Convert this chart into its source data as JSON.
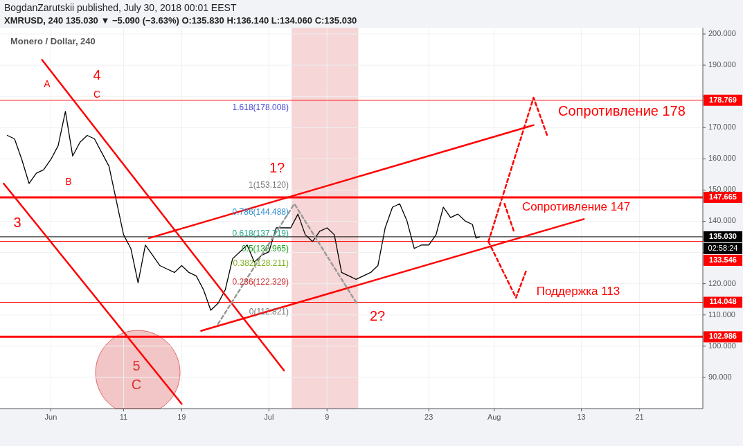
{
  "chart_data": {
    "type": "line",
    "title": "Monero / Dollar, 240",
    "annotations": [
      "BogdanZarutskii published, July 30, 2018 00:01 EEST",
      "XMRUSD, 240  135.030 ▼ −5.090 (−3.63%)  O:135.830  H:136.140  L:134.060  C:135.030",
      "02:58:24",
      "A",
      "4",
      "C",
      "B",
      "3",
      "5",
      "C",
      "1?",
      "2?",
      "Сопротивление 178",
      "Сопротивление 147",
      "Поддержка 113",
      "1.618(178.008)",
      "1(153.120)",
      "0.786(144.488)",
      "0.618(137.719)",
      "0.5(132.965)",
      "0.382(128.211)",
      "0.236(122.329)",
      "0(112.821)"
    ],
    "x": [
      "2018-05-26",
      "2018-05-27",
      "2018-05-28",
      "2018-05-29",
      "2018-05-30",
      "2018-05-31",
      "2018-06-01",
      "2018-06-02",
      "2018-06-03",
      "2018-06-04",
      "2018-06-05",
      "2018-06-06",
      "2018-06-07",
      "2018-06-08",
      "2018-06-09",
      "2018-06-10",
      "2018-06-11",
      "2018-06-12",
      "2018-06-13",
      "2018-06-14",
      "2018-06-15",
      "2018-06-16",
      "2018-06-17",
      "2018-06-18",
      "2018-06-19",
      "2018-06-20",
      "2018-06-21",
      "2018-06-22",
      "2018-06-23",
      "2018-06-24",
      "2018-06-25",
      "2018-06-26",
      "2018-06-27",
      "2018-06-28",
      "2018-06-29",
      "2018-06-30",
      "2018-07-01",
      "2018-07-02",
      "2018-07-03",
      "2018-07-04",
      "2018-07-05",
      "2018-07-06",
      "2018-07-07",
      "2018-07-08",
      "2018-07-09",
      "2018-07-10",
      "2018-07-11",
      "2018-07-12",
      "2018-07-13",
      "2018-07-14",
      "2018-07-15",
      "2018-07-16",
      "2018-07-17",
      "2018-07-18",
      "2018-07-19",
      "2018-07-20",
      "2018-07-21",
      "2018-07-22",
      "2018-07-23",
      "2018-07-24",
      "2018-07-25",
      "2018-07-26",
      "2018-07-27",
      "2018-07-28",
      "2018-07-29",
      "2018-07-29T12:00",
      "2018-07-30"
    ],
    "series": [
      {
        "color": "#000000",
        "values": [
          167.5,
          166.4,
          159.8,
          152.1,
          155.4,
          156.5,
          159.8,
          164.2,
          175.2,
          160.9,
          165.3,
          167.5,
          166.4,
          162,
          157.6,
          146.7,
          135.7,
          131.3,
          120.3,
          132.4,
          129.1,
          125.8,
          124.7,
          123.6,
          125.8,
          123.6,
          122.5,
          118.1,
          111.5,
          113.7,
          118.1,
          128,
          130.2,
          132.4,
          126.9,
          129.1,
          130.2,
          137.9,
          137.9,
          137.9,
          142.3,
          135.7,
          133.5,
          136.8,
          137.9,
          135.7,
          123.6,
          122.5,
          121.4,
          122.5,
          123.6,
          125.8,
          137.9,
          144.5,
          145.6,
          140.1,
          131.3,
          132.4,
          132.4,
          135.7,
          144.5,
          141.2,
          142.3,
          140.1,
          139,
          134.6,
          135
        ]
      },
      {
        "type": "line",
        "color": "#ff0000",
        "x": [
          "2018-06-14T12:00",
          "2018-08-06T10:00"
        ],
        "values": [
          134.6,
          170.8
        ]
      },
      {
        "type": "line",
        "color": "#ff0000",
        "x": [
          "2018-06-21T16:00",
          "2018-08-13T08:00"
        ],
        "values": [
          104.9,
          140.7
        ]
      },
      {
        "type": "line",
        "color": "#ff0000",
        "x": [
          "2018-05-30T19:00",
          "2018-07-03T02:00"
        ],
        "values": [
          191.7,
          92.2
        ]
      },
      {
        "type": "line",
        "color": "#ff0000",
        "x": [
          "2018-05-25T12:00",
          "2018-06-19T00:00"
        ],
        "values": [
          152.1,
          81.5
        ]
      },
      {
        "type": "line",
        "color": "#ff0000",
        "line_style": "dashed",
        "x": [
          "2018-07-31T05:00",
          "2018-08-06T10:00",
          "2018-08-08T07:00"
        ],
        "values": [
          133.5,
          179.6,
          167.5
        ]
      },
      {
        "type": "line",
        "color": "#ff0000",
        "line_style": "dashed",
        "x": [
          "2018-07-31T05:00",
          "2018-08-04T00:00",
          "2018-08-05T10:00"
        ],
        "values": [
          133.5,
          115.5,
          124.3
        ]
      },
      {
        "type": "line",
        "color": "#ff0000",
        "line_style": "dashed",
        "x": [
          "2018-08-02T10:00",
          "2018-08-03T17:00"
        ],
        "values": [
          145.6,
          136.8
        ]
      },
      {
        "type": "line",
        "color": "#999999",
        "line_style": "dashed",
        "x": [
          "2018-06-24T00:00",
          "2018-07-04T12:00",
          "2018-07-13T02:00"
        ],
        "values": [
          107.1,
          145.6,
          113.7
        ]
      }
    ],
    "xlim": [
      "2018-05-25T00:00",
      "2018-08-29T17:00"
    ],
    "xticks": [
      {
        "value": "2018-06-01",
        "label": "Jun"
      },
      {
        "value": "2018-06-11",
        "label": "11"
      },
      {
        "value": "2018-06-19",
        "label": "19"
      },
      {
        "value": "2018-07-01",
        "label": "Jul"
      },
      {
        "value": "2018-07-09",
        "label": "9"
      },
      {
        "value": "2018-07-23",
        "label": "23"
      },
      {
        "value": "2018-08-01",
        "label": "Aug"
      },
      {
        "value": "2018-08-13",
        "label": "13"
      },
      {
        "value": "2018-08-21",
        "label": "21"
      }
    ],
    "ylim": [
      80,
      202
    ],
    "yticks": [
      {
        "value": 90,
        "label": "90.000"
      },
      {
        "value": 100,
        "label": "100.000"
      },
      {
        "value": 110,
        "label": "110.000"
      },
      {
        "value": 120,
        "label": "120.000"
      },
      {
        "value": 130,
        "label": null
      },
      {
        "value": 140,
        "label": "140.000"
      },
      {
        "value": 150,
        "label": "150.000"
      },
      {
        "value": 160,
        "label": "160.000"
      },
      {
        "value": 170,
        "label": "170.000"
      },
      {
        "value": 180,
        "label": null
      },
      {
        "value": 190,
        "label": "190.000"
      },
      {
        "value": 200,
        "label": "200.000"
      }
    ],
    "ref_lines": [
      {
        "axis": "y",
        "value": 178.769,
        "label": "178.769",
        "color": "#ff0000"
      },
      {
        "axis": "y",
        "value": 147.665,
        "label": "147.665",
        "color": "#ff0000"
      },
      {
        "axis": "y",
        "value": 135.03,
        "label": "135.030",
        "color": "#000000"
      },
      {
        "axis": "y",
        "value": 133.546,
        "label": "133.546",
        "color": "#ff0000"
      },
      {
        "axis": "y",
        "value": 114.048,
        "label": "114.048",
        "color": "#ff0000"
      },
      {
        "axis": "y",
        "value": 102.986,
        "label": "102.986",
        "color": "#ff0000"
      }
    ],
    "bands": [
      {
        "axis": "x",
        "from": "2018-07-04T03:00",
        "to": "2018-07-13T07:00",
        "color": "#f4cccc"
      }
    ],
    "grid": true,
    "marker": "none",
    "line_style": "solid"
  }
}
